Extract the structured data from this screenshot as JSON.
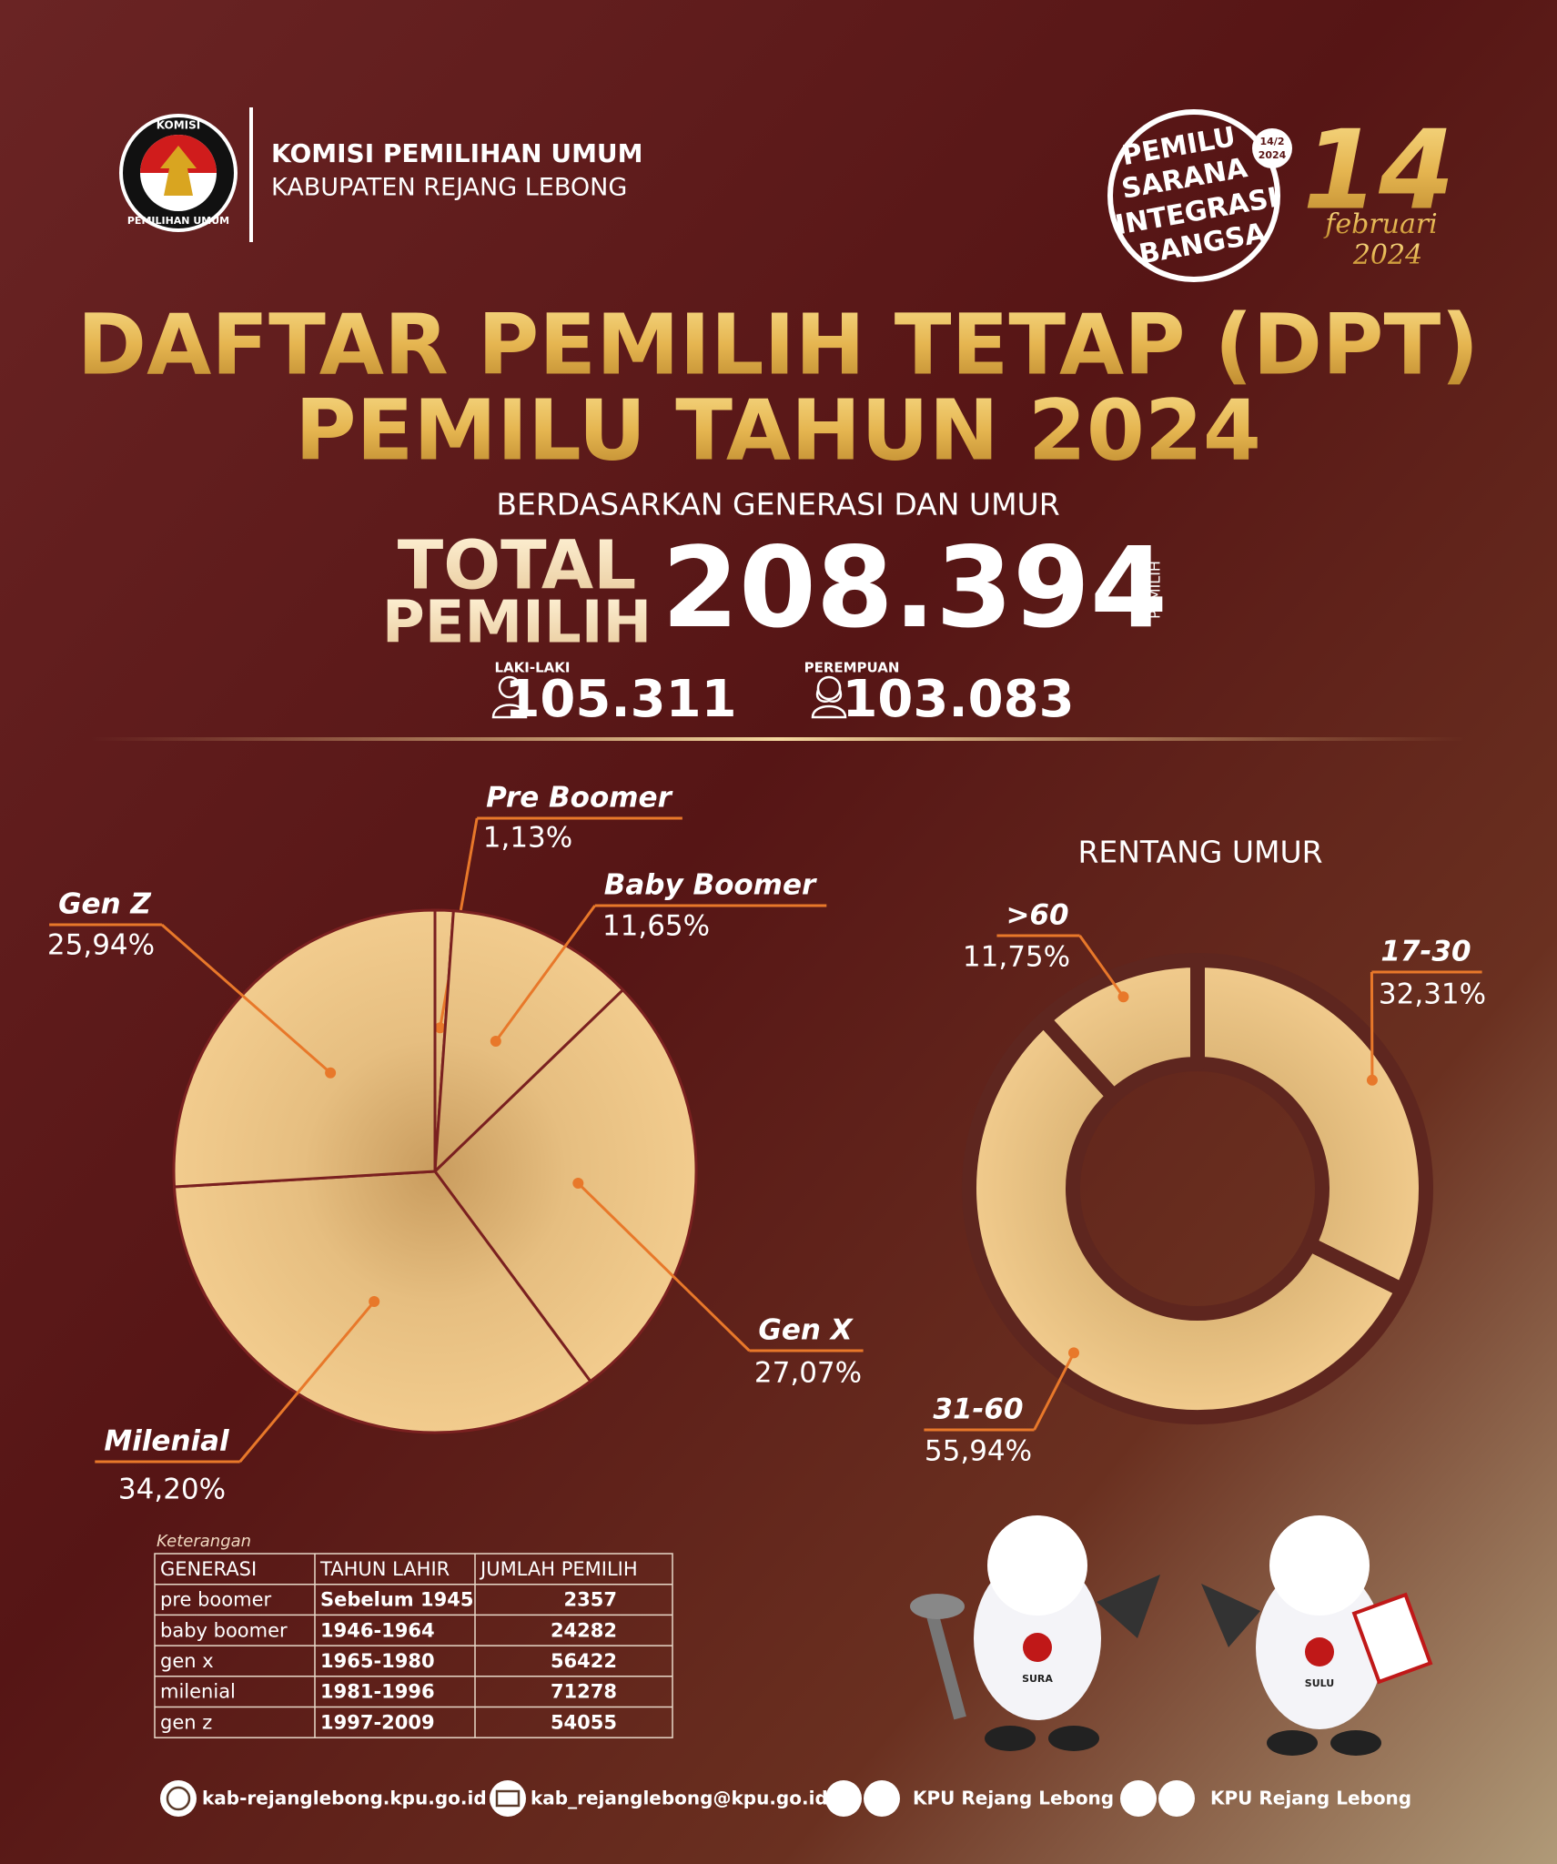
{
  "header": {
    "org": "KOMISI PEMILIHAN UMUM",
    "region": "KABUPATEN REJANG LEBONG",
    "logo_top": "KOMISI",
    "logo_bottom": "PEMILIHAN UMUM",
    "badge": [
      "PEMILU",
      "SARANA",
      "INTEGRASI",
      "BANGSA"
    ],
    "badge_date": [
      "14/2",
      "2024"
    ],
    "date_day": "14",
    "date_month": "februari",
    "date_year": "2024"
  },
  "title": [
    "DAFTAR PEMILIH TETAP (DPT)",
    "PEMILU TAHUN 2024"
  ],
  "subtitle": "BERDASARKAN GENERASI DAN UMUR",
  "total": {
    "label": [
      "TOTAL",
      "PEMILIH"
    ],
    "value": "208.394",
    "unit": "PEMILIH",
    "male_label": "LAKI-LAKI",
    "male": "105.311",
    "female_label": "PEREMPUAN",
    "female": "103.083"
  },
  "chart_data": [
    {
      "type": "pie",
      "categories": [
        "Pre Boomer",
        "Baby Boomer",
        "Gen X",
        "Milenial",
        "Gen Z"
      ],
      "values": [
        1.13,
        11.65,
        27.07,
        34.2,
        25.94
      ],
      "value_labels": [
        "1,13%",
        "11,65%",
        "27,07%",
        "34,20%",
        "25,94%"
      ],
      "color": "#f0c98a"
    },
    {
      "type": "donut",
      "title": "RENTANG UMUR",
      "categories": [
        "17-30",
        "31-60",
        ">60"
      ],
      "values": [
        32.31,
        55.94,
        11.75
      ],
      "value_labels": [
        "32,31%",
        "55,94%",
        "11,75%"
      ],
      "color": "#f0c98a"
    }
  ],
  "table": {
    "caption": "Keterangan",
    "headers": [
      "GENERASI",
      "TAHUN LAHIR",
      "JUMLAH PEMILIH"
    ],
    "rows": [
      [
        "pre boomer",
        "Sebelum 1945",
        2357
      ],
      [
        "baby boomer",
        "1946-1964",
        24282
      ],
      [
        "gen x",
        "1965-1980",
        56422
      ],
      [
        "milenial",
        "1981-1996",
        71278
      ],
      [
        "gen z",
        "1997-2009",
        54055
      ]
    ]
  },
  "mascots": [
    "SURA",
    "SULU"
  ],
  "footer": {
    "website": "kab-rejanglebong.kpu.go.id",
    "email": "kab_rejanglebong@kpu.go.id",
    "social1": "KPU Rejang Lebong",
    "social2": "KPU Rejang Lebong"
  }
}
